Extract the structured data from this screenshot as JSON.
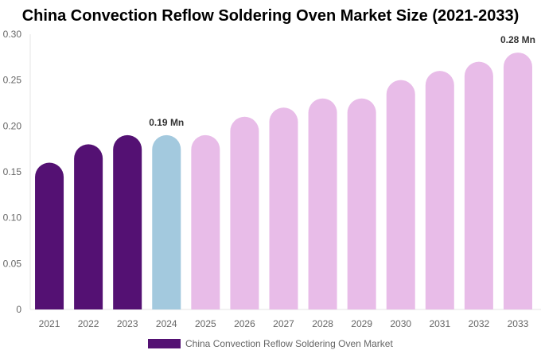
{
  "chart_data": {
    "type": "bar",
    "title": "China Convection Reflow Soldering Oven Market Size (2021-2033)",
    "categories": [
      "2021",
      "2022",
      "2023",
      "2024",
      "2025",
      "2026",
      "2027",
      "2028",
      "2029",
      "2030",
      "2031",
      "2032",
      "2033"
    ],
    "series": [
      {
        "name": "China Convection Reflow Soldering Oven Market",
        "values": [
          0.16,
          0.18,
          0.19,
          0.19,
          0.19,
          0.21,
          0.22,
          0.23,
          0.23,
          0.25,
          0.26,
          0.27,
          0.28
        ]
      }
    ],
    "bar_colors": [
      "#541173",
      "#541173",
      "#541173",
      "#a3c9de",
      "#e8bce8",
      "#e8bce8",
      "#e8bce8",
      "#e8bce8",
      "#e8bce8",
      "#e8bce8",
      "#e8bce8",
      "#e8bce8",
      "#e8bce8"
    ],
    "data_labels": [
      {
        "category": "2024",
        "text": "0.19 Mn"
      },
      {
        "category": "2033",
        "text": "0.28 Mn"
      }
    ],
    "yticks": [
      "0",
      "0.05",
      "0.10",
      "0.15",
      "0.20",
      "0.25",
      "0.30"
    ],
    "ylim": [
      0,
      0.3
    ],
    "grid": false,
    "legend_position": "bottom"
  }
}
